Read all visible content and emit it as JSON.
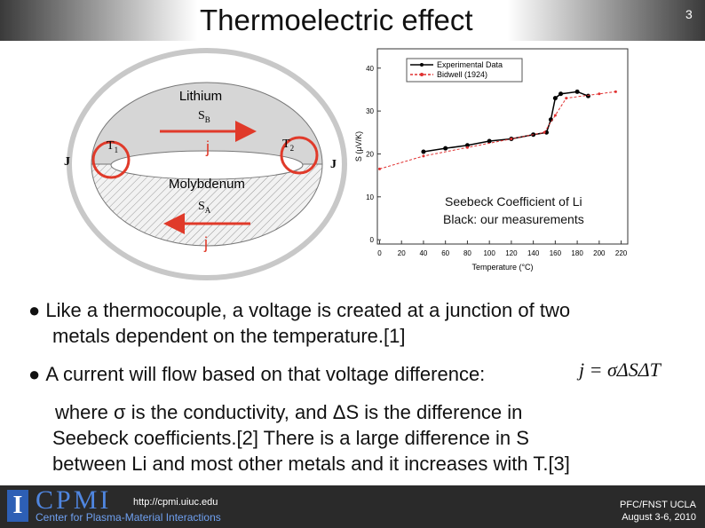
{
  "header": {
    "title": "Thermoelectric effect",
    "page": "3"
  },
  "diagram": {
    "top_metal": "Lithium",
    "top_coef": {
      "symbol": "S",
      "sub": "B"
    },
    "bottom_metal": "Molybdenum",
    "bottom_coef": {
      "symbol": "S",
      "sub": "A"
    },
    "junction_left": {
      "symbol": "T",
      "sub": "1"
    },
    "junction_right": {
      "symbol": "T",
      "sub": "2"
    },
    "current_outer": "J",
    "current_inner": "j"
  },
  "plot": {
    "type": "line",
    "x_label": "Temperature (°C)",
    "y_label": "S (μV/K)",
    "xlim": [
      -2,
      226
    ],
    "ylim": [
      -1,
      44.5
    ],
    "xticks": [
      0,
      20,
      40,
      60,
      80,
      100,
      120,
      140,
      160,
      180,
      200,
      220
    ],
    "yticks": [
      0,
      10,
      20,
      30,
      40
    ],
    "series": [
      {
        "name": "Experimental Data",
        "color": "#000000",
        "x": [
          40,
          60,
          80,
          100,
          120,
          140,
          152,
          156,
          160,
          165,
          180,
          190
        ],
        "values": [
          20.5,
          21.3,
          22,
          23,
          23.5,
          24.5,
          25,
          28,
          33,
          34,
          34.5,
          33.5
        ]
      },
      {
        "name": "Bidwell (1924)",
        "color": "#e03030",
        "x": [
          0,
          40,
          80,
          120,
          150,
          160,
          170,
          200,
          215
        ],
        "values": [
          16.5,
          19.5,
          21.5,
          23.5,
          25,
          29,
          33,
          34,
          34.5
        ]
      }
    ],
    "caption": [
      "Seebeck Coefficient of Li",
      "Black: our measurements"
    ]
  },
  "bullets": [
    "Like a thermocouple, a voltage is created at a junction of two",
    "metals dependent on the temperature.[1]",
    "A current will flow based on that voltage difference:"
  ],
  "equation": "j = σΔSΔT",
  "note": [
    "where σ is the conductivity, and ΔS is the difference in",
    "Seebeck coefficients.[2]  There is a large difference in S",
    "between Li and most other metals and it increases with T.[3]"
  ],
  "footer": {
    "logo": "CPMI",
    "url": "http://cpmi.uiuc.edu",
    "center": "Center for Plasma-Material Interactions",
    "event": "PFC/FNST UCLA",
    "dates": "August 3-6, 2010"
  }
}
